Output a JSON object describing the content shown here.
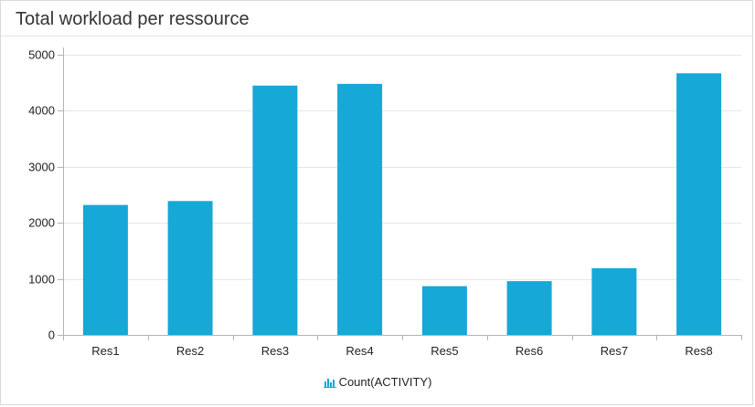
{
  "panel": {
    "title": "Total workload per ressource"
  },
  "chart_data": {
    "type": "bar",
    "title": "Total workload per ressource",
    "categories": [
      "Res1",
      "Res2",
      "Res3",
      "Res4",
      "Res5",
      "Res6",
      "Res7",
      "Res8"
    ],
    "series": [
      {
        "name": "Count(ACTIVITY)",
        "values": [
          2320,
          2390,
          4450,
          4480,
          870,
          960,
          1190,
          4670
        ]
      }
    ],
    "ylim": [
      0,
      5000
    ],
    "yticks": [
      0,
      1000,
      2000,
      3000,
      4000,
      5000
    ],
    "grid": true,
    "legend": "bottom",
    "colors": {
      "bar": "#16a8d6",
      "grid": "#e6e6e6",
      "axis": "#b3b3b3"
    }
  },
  "legend": {
    "icon": "bar-chart-icon",
    "label": "Count(ACTIVITY)"
  }
}
